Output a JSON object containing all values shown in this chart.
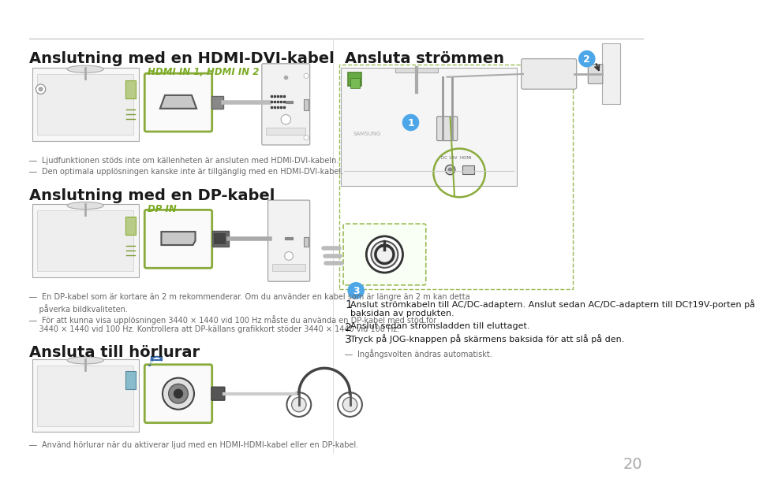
{
  "bg_color": "#ffffff",
  "page_number": "20",
  "section1_title": "Anslutning med en HDMI-DVI-kabel",
  "section2_title": "Anslutning med en DP-kabel",
  "section3_title": "Ansluta till hörlurar",
  "section4_title": "Ansluta strömmen",
  "hdmi_label": "HDMI IN 1, HDMI IN 2",
  "dp_label": "DP IN",
  "note1a": "―  Ljudfunktionen stöds inte om källenheten är ansluten med HDMI-DVI-kabeln.",
  "note1b": "―  Den optimala upplösningen kanske inte är tillgänglig med en HDMI-DVI-kabel.",
  "note2a": "―  En DP-kabel som är kortare än 2 m rekommenderar. Om du använder en kabel som är längre än 2 m kan detta",
  "note2a2": "    påverka bildkvaliteten.",
  "note2b": "―  För att kunna visa upplösningen 3440 × 1440 vid 100 Hz måste du använda en DP-kabel med stöd för",
  "note2b2": "    3440 × 1440 vid 100 Hz. Kontrollera att DP-källans grafikkort stöder 3440 × 1440 vid 100 Hz.",
  "note3": "―  Använd hörlurar när du aktiverar ljud med en HDMI-HDMI-kabel eller en DP-kabel.",
  "power_note": "―  Ingångsvolten ändras automatiskt.",
  "power_step1_num": "1",
  "power_step1_bold": "DC 19V-porten på",
  "power_step1a": "  Anslut strömkabeln till AC/DC-adaptern. Anslut sedan AC/DC-adaptern till DC†19V-porten på",
  "power_step1b": "  baksidan av produkten.",
  "power_step2_num": "2",
  "power_step2": "  Anslut sedan strömsladden till eluttaget.",
  "power_step3_num": "3",
  "power_step3": "  Tryck på JOG-knappen på skärmens baksida för att slå på den.",
  "title_fontsize": 14,
  "note_fontsize": 7,
  "body_fontsize": 8,
  "step_num_fontsize": 10,
  "green_color": "#6b8c23",
  "green_border": "#8aab3c",
  "green_label": "#7aaa22",
  "blue_color": "#4da6e8",
  "text_dark": "#1a1a1a",
  "text_gray": "#666666",
  "samsung_text": "samsung"
}
